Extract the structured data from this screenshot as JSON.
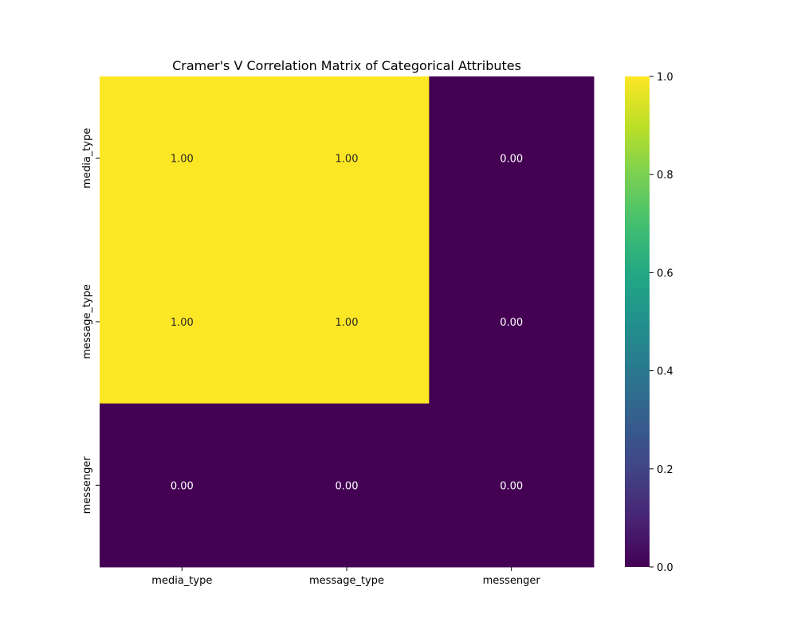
{
  "chart_data": {
    "type": "heatmap",
    "title": "Cramer's V Correlation Matrix of Categorical Attributes",
    "xlabel": "",
    "ylabel": "",
    "x_categories": [
      "media_type",
      "message_type",
      "messenger"
    ],
    "y_categories": [
      "media_type",
      "message_type",
      "messenger"
    ],
    "values": [
      [
        1.0,
        1.0,
        0.0
      ],
      [
        1.0,
        1.0,
        0.0
      ],
      [
        0.0,
        0.0,
        0.0
      ]
    ],
    "annotation_format": "2 decimals",
    "colormap": "viridis",
    "colors": {
      "low": "#440154",
      "high": "#fde725",
      "annotation_on_dark": "#ffffff",
      "annotation_on_light": "#262626"
    },
    "colorbar": {
      "range": [
        0.0,
        1.0
      ],
      "ticks": [
        0.0,
        0.2,
        0.4,
        0.6,
        0.8,
        1.0
      ],
      "tick_labels": [
        "0.0",
        "0.2",
        "0.4",
        "0.6",
        "0.8",
        "1.0"
      ],
      "position": "right"
    },
    "grid": false,
    "legend": "none"
  }
}
